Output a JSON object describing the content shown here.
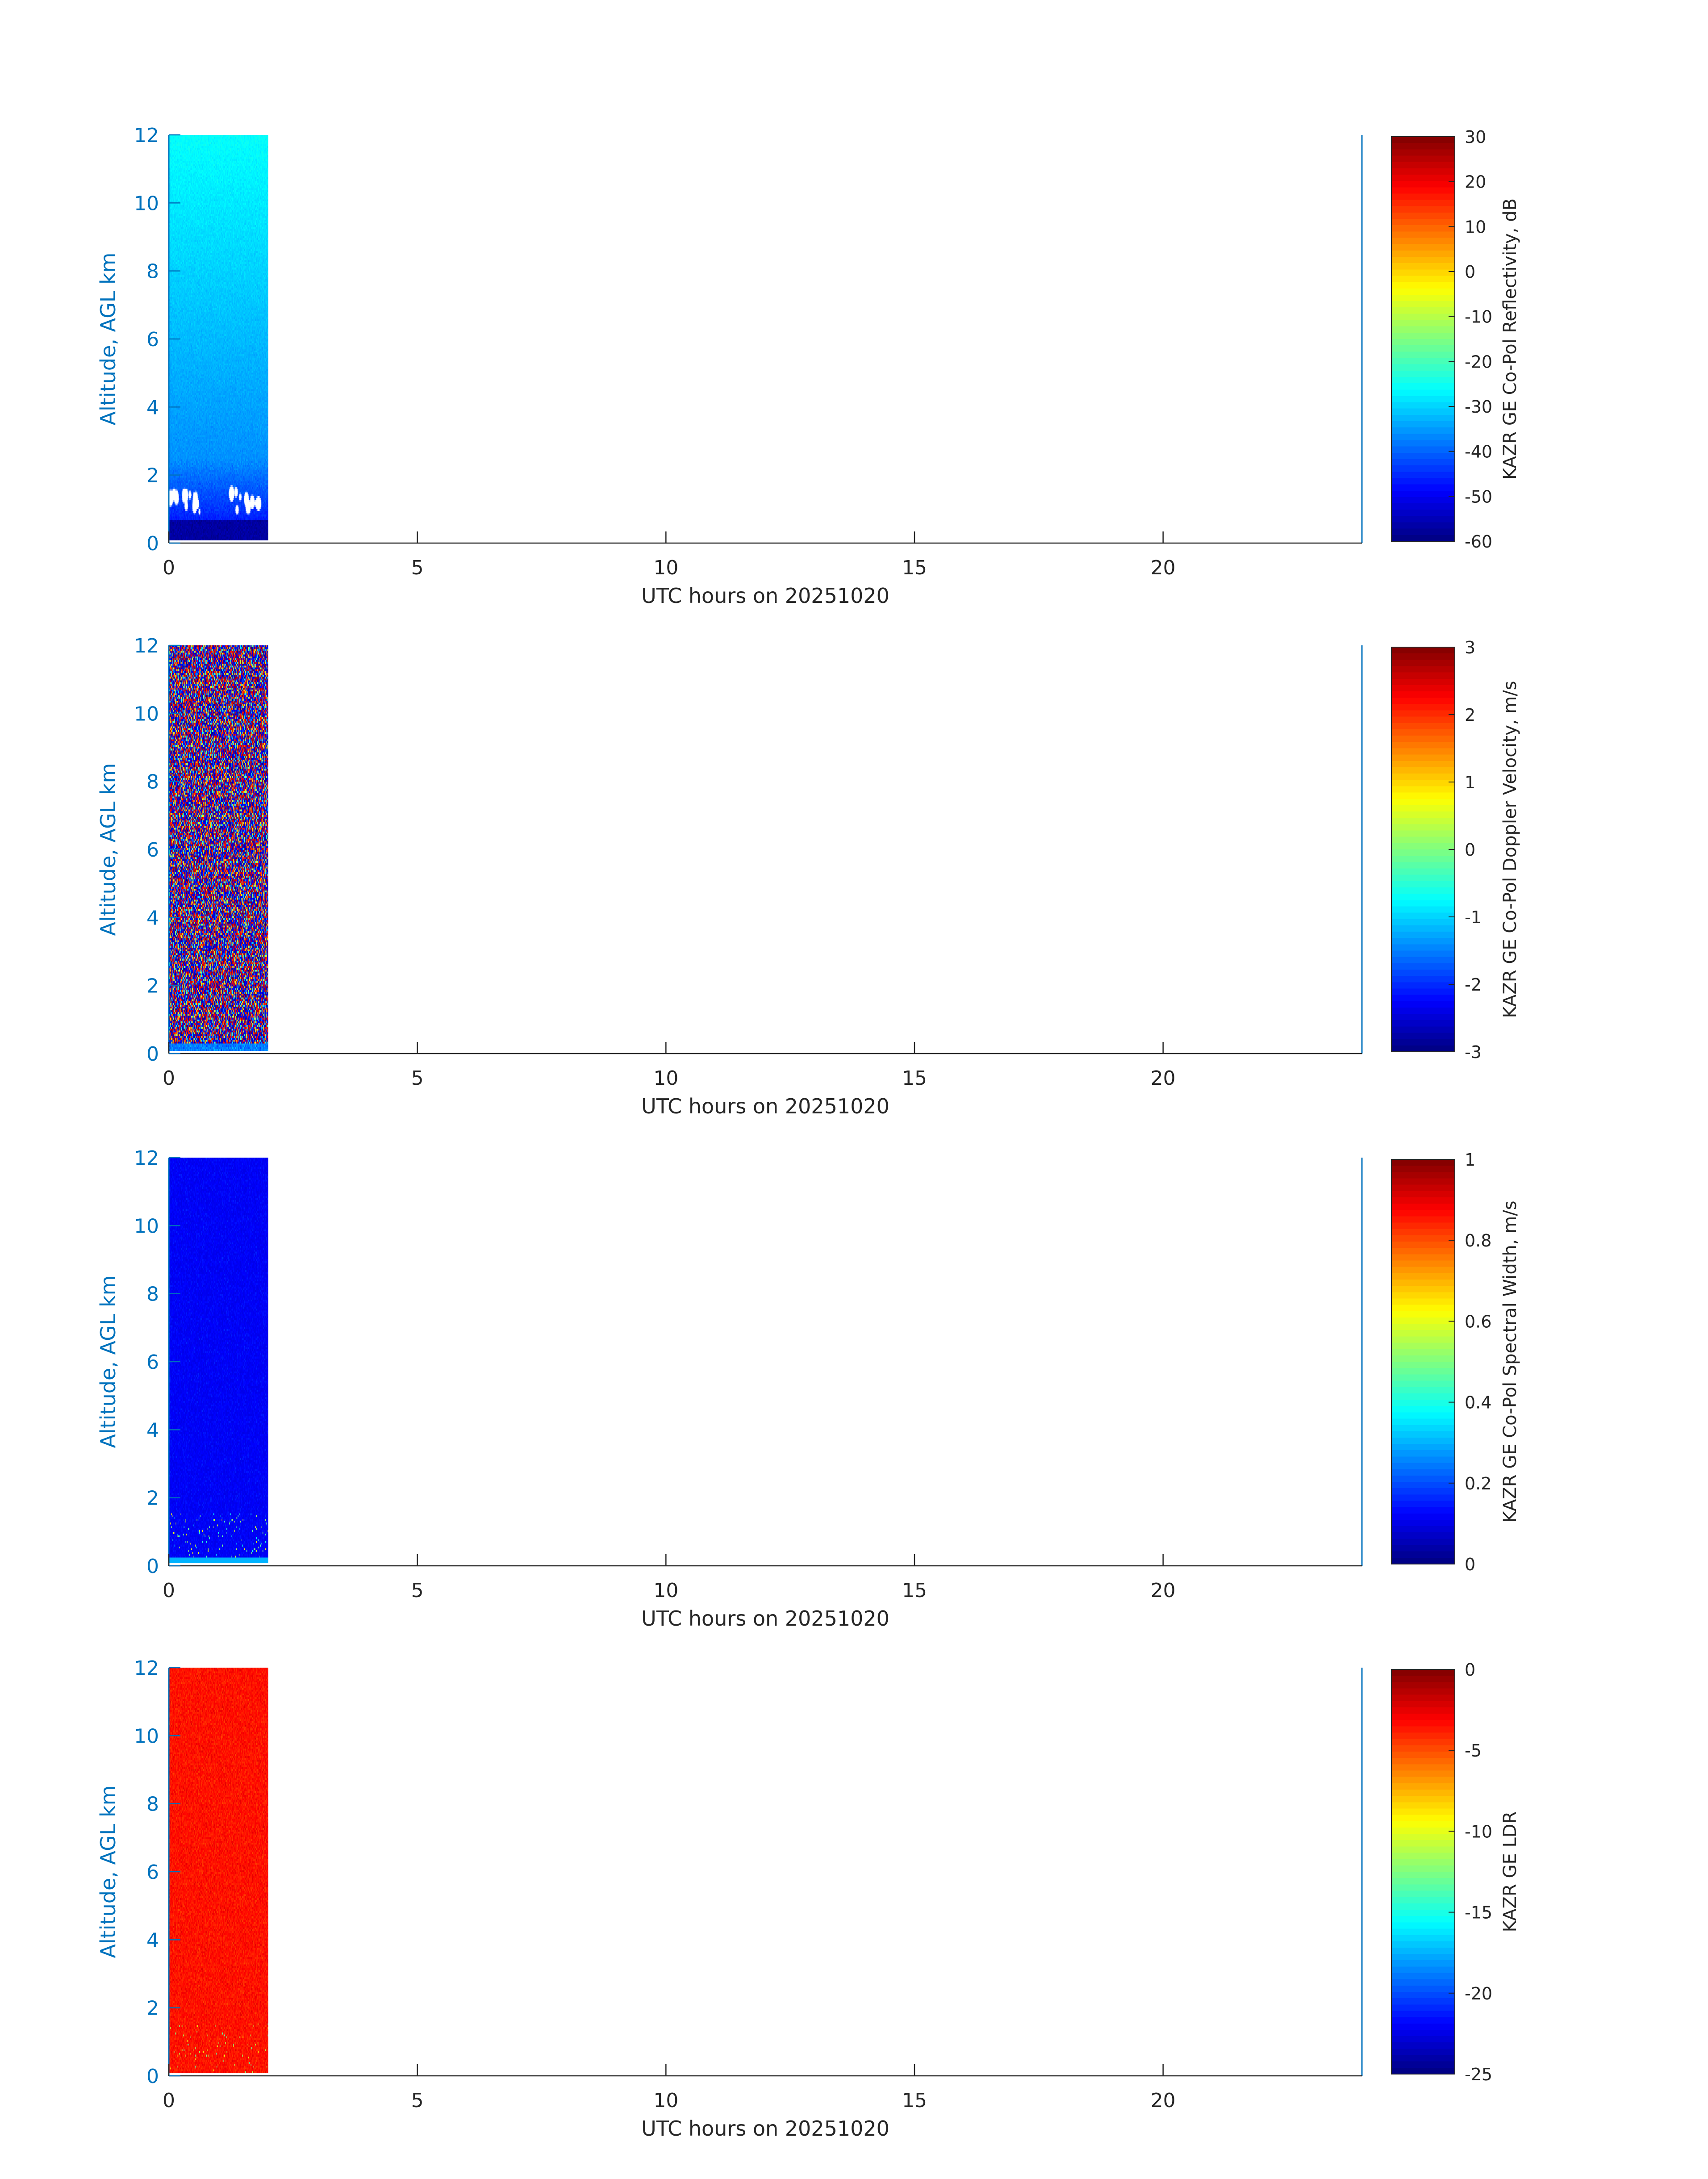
{
  "colors": {
    "axis_blue": "#0072bd",
    "axis_dark": "#262626",
    "colormap": "jet"
  },
  "chart_data": [
    {
      "type": "heatmap",
      "xlabel": "UTC hours on 20251020",
      "ylabel": "Altitude, AGL km",
      "xlim": [
        0,
        24
      ],
      "ylim": [
        0,
        12
      ],
      "xticks": [
        "0",
        "5",
        "10",
        "15",
        "20"
      ],
      "yticks": [
        "0",
        "2",
        "4",
        "6",
        "8",
        "10",
        "12"
      ],
      "data_extent_hours": [
        0,
        2
      ],
      "colorbar": {
        "label": "KAZR GE Co-Pol Reflectivity, dB",
        "range": [
          -60,
          30
        ],
        "ticks": [
          "30",
          "20",
          "10",
          "0",
          "-10",
          "-20",
          "-30",
          "-40",
          "-50",
          "-60"
        ]
      },
      "pattern": "reflectivity",
      "description_values": {
        "low_level_value": -48,
        "upper_level_value": -26
      }
    },
    {
      "type": "heatmap",
      "xlabel": "UTC hours on 20251020",
      "ylabel": "Altitude, AGL km",
      "xlim": [
        0,
        24
      ],
      "ylim": [
        0,
        12
      ],
      "xticks": [
        "0",
        "5",
        "10",
        "15",
        "20"
      ],
      "yticks": [
        "0",
        "2",
        "4",
        "6",
        "8",
        "10",
        "12"
      ],
      "data_extent_hours": [
        0,
        2
      ],
      "colorbar": {
        "label": "KAZR GE Co-Pol Doppler Velocity, m/s",
        "range": [
          -3,
          3
        ],
        "ticks": [
          "3",
          "2",
          "1",
          "0",
          "-1",
          "-2",
          "-3"
        ]
      },
      "pattern": "velocity"
    },
    {
      "type": "heatmap",
      "xlabel": "UTC hours on 20251020",
      "ylabel": "Altitude, AGL km",
      "xlim": [
        0,
        24
      ],
      "ylim": [
        0,
        12
      ],
      "xticks": [
        "0",
        "5",
        "10",
        "15",
        "20"
      ],
      "yticks": [
        "0",
        "2",
        "4",
        "6",
        "8",
        "10",
        "12"
      ],
      "data_extent_hours": [
        0,
        2
      ],
      "colorbar": {
        "label": "KAZR GE Co-Pol Spectral Width, m/s",
        "range": [
          0,
          1
        ],
        "ticks": [
          "1",
          "0.8",
          "0.6",
          "0.4",
          "0.2",
          "0"
        ]
      },
      "pattern": "width"
    },
    {
      "type": "heatmap",
      "xlabel": "UTC hours on 20251020",
      "ylabel": "Altitude, AGL km",
      "xlim": [
        0,
        24
      ],
      "ylim": [
        0,
        12
      ],
      "xticks": [
        "0",
        "5",
        "10",
        "15",
        "20"
      ],
      "yticks": [
        "0",
        "2",
        "4",
        "6",
        "8",
        "10",
        "12"
      ],
      "data_extent_hours": [
        0,
        2
      ],
      "colorbar": {
        "label": "KAZR GE LDR",
        "range": [
          -25,
          0
        ],
        "ticks": [
          "0",
          "-5",
          "-10",
          "-15",
          "-20",
          "-25"
        ]
      },
      "pattern": "ldr"
    }
  ]
}
